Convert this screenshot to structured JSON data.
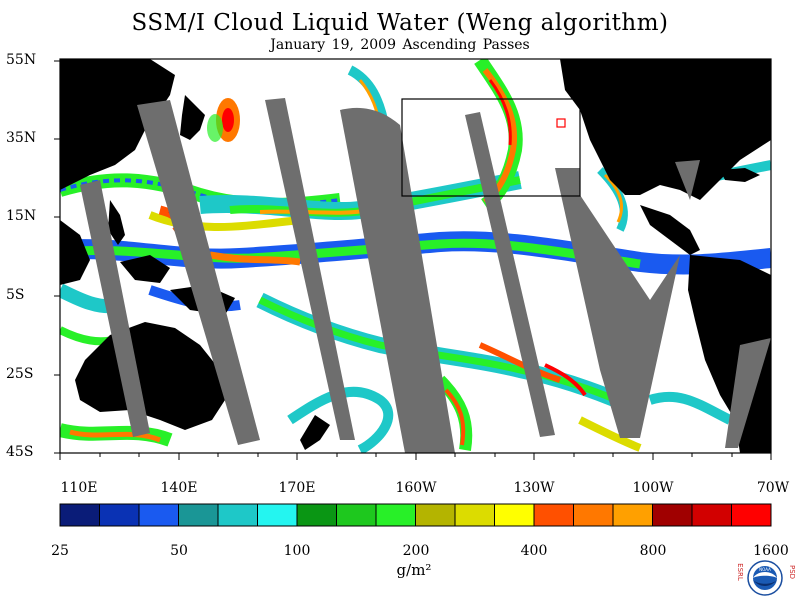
{
  "title": "SSM/I Cloud Liquid Water (Weng algorithm)",
  "subtitle": "January 19, 2009  Ascending Passes",
  "lat_labels": [
    "55N",
    "35N",
    "15N",
    "5S",
    "25S",
    "45S"
  ],
  "lon_labels": [
    "110E",
    "140E",
    "170E",
    "160W",
    "130W",
    "100W",
    "70W"
  ],
  "colorbar": {
    "colors": [
      "#0a1c78",
      "#0a32b4",
      "#1a5af0",
      "#1a9696",
      "#1ec8c8",
      "#24f5f0",
      "#0a9614",
      "#1ec81e",
      "#28f028",
      "#b4b400",
      "#dcdc00",
      "#ffff00",
      "#ff5000",
      "#ff7800",
      "#ffa000",
      "#a00000",
      "#d20000",
      "#ff0000"
    ],
    "tick_labels": [
      "25",
      "50",
      "100",
      "200",
      "400",
      "800",
      "1600"
    ],
    "units": "g/m²"
  },
  "map_colors": {
    "land": "#000000",
    "missing": "#6e6e6e",
    "ocean": "#ffffff"
  },
  "logo_text": {
    "left": "ESRL",
    "right": "PSD",
    "center": "NOAA"
  }
}
